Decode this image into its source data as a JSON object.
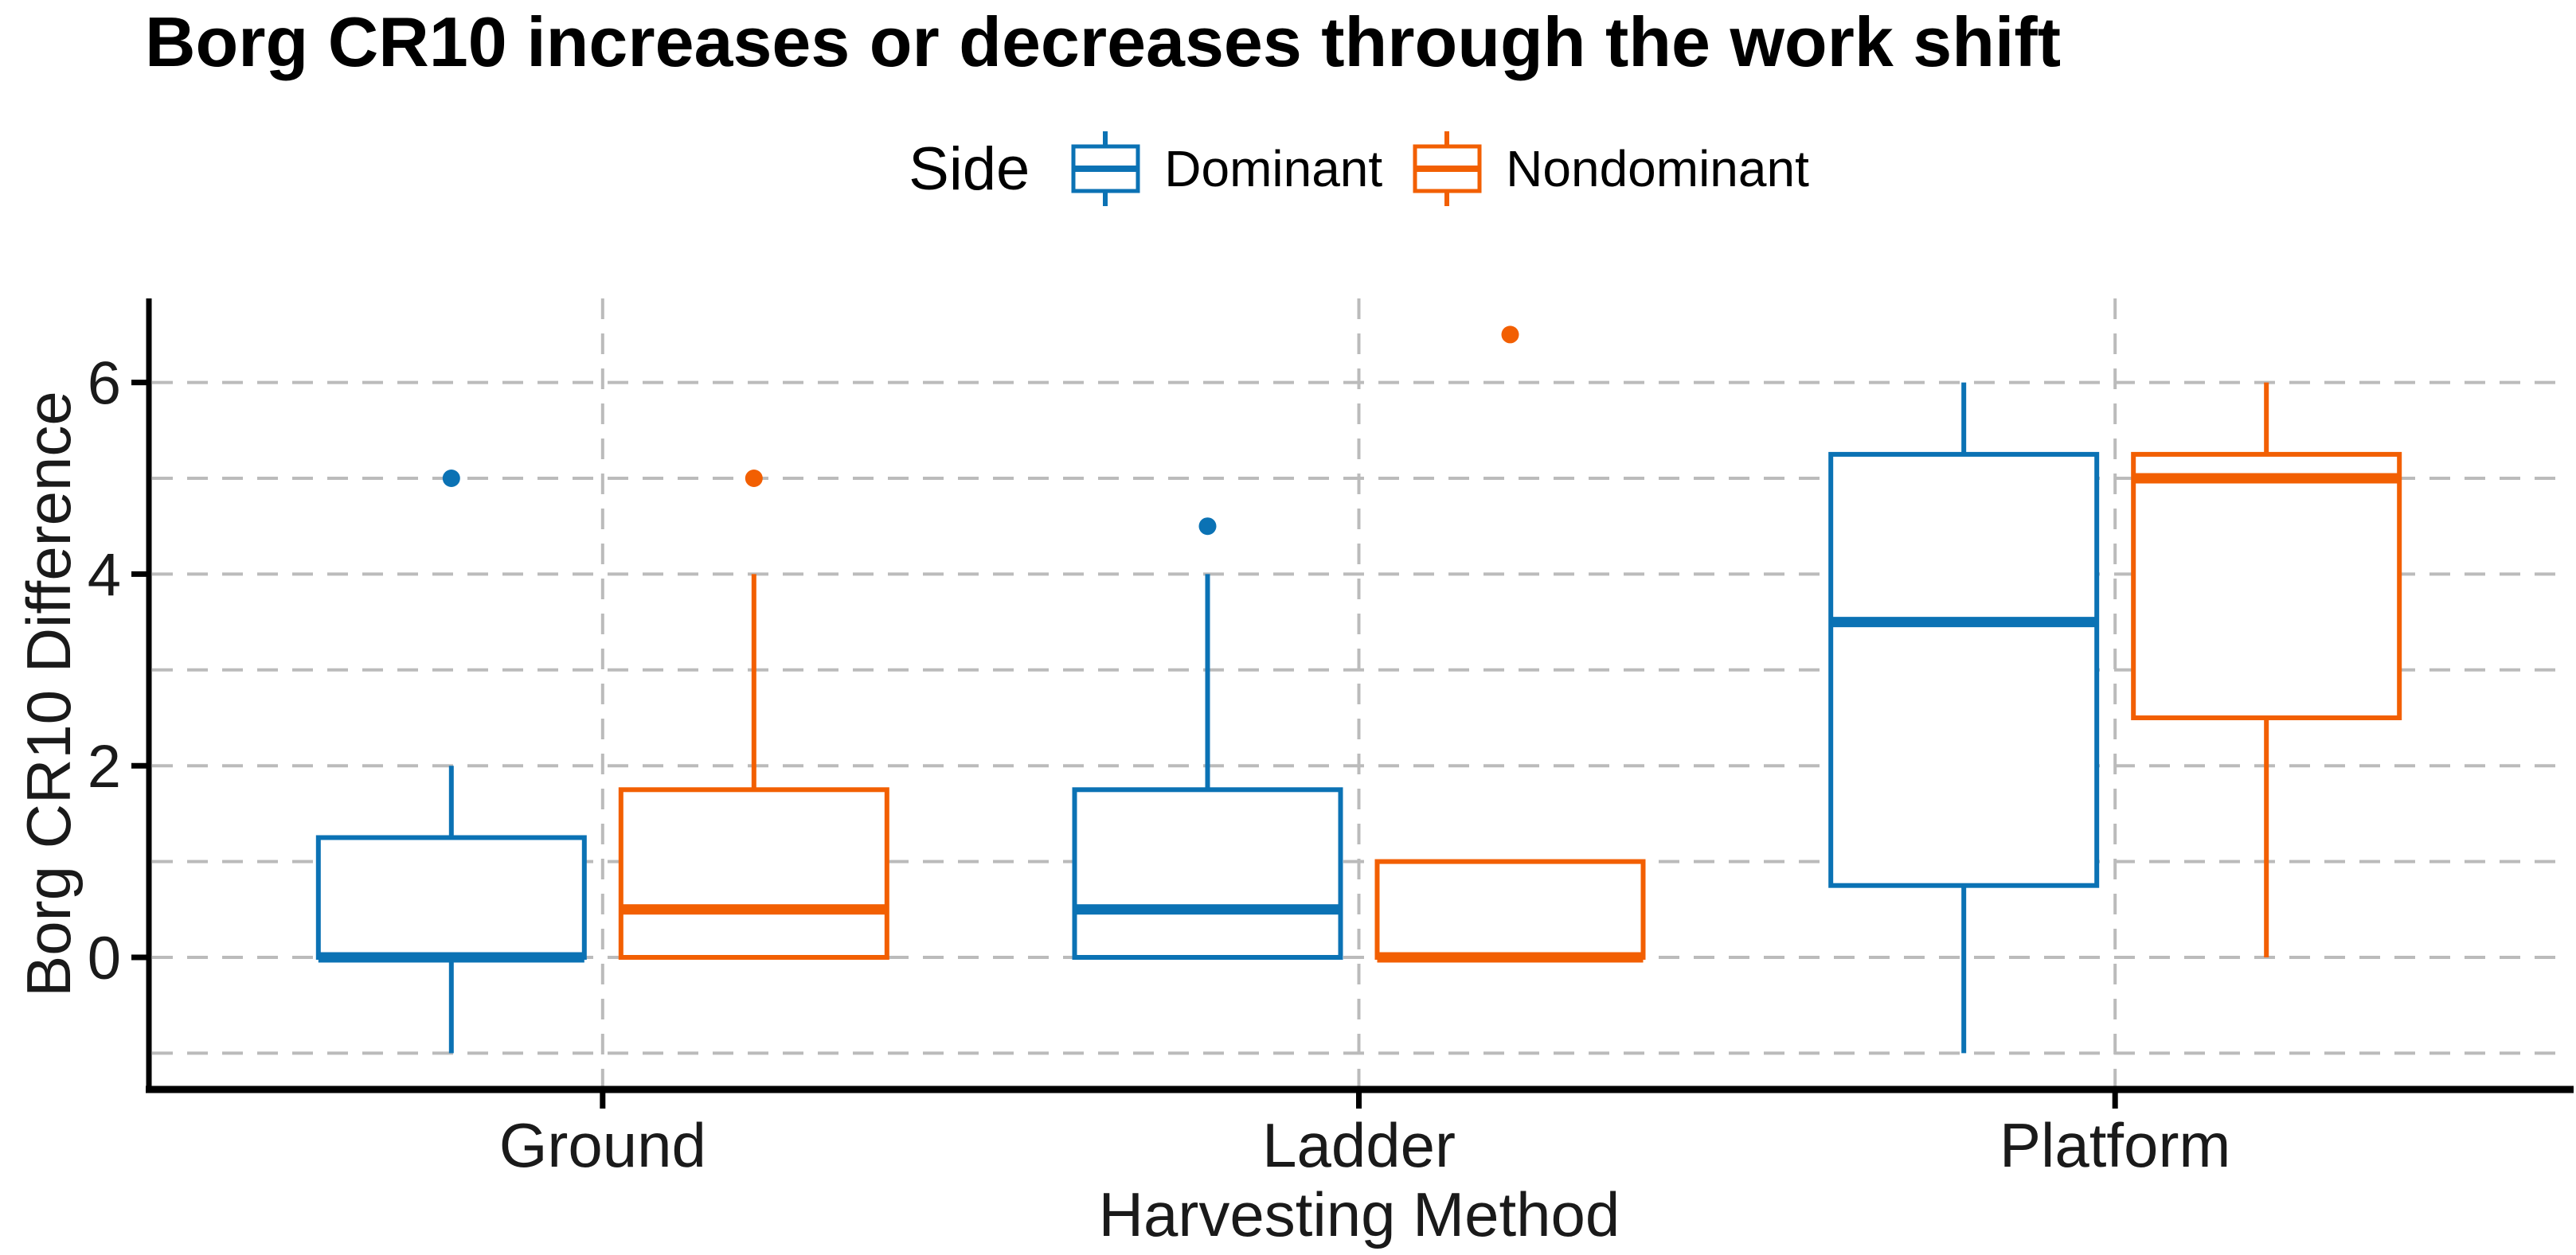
{
  "chart_data": {
    "type": "boxplot",
    "title": "Borg CR10 increases or decreases through the work shift",
    "xlabel": "Harvesting Method",
    "ylabel": "Borg CR10 Difference",
    "categories": [
      "Ground",
      "Ladder",
      "Platform"
    ],
    "legend": {
      "title": "Side",
      "position": "top-center"
    },
    "colors": {
      "dominant": "#0B72B4",
      "nondominant": "#F25F02",
      "grid": "#BBBBBB",
      "axis": "#000000",
      "tick_text": "#1A1A1A"
    },
    "y_axis": {
      "label": "Borg CR10 Difference",
      "tick_labels": [
        0,
        2,
        4,
        6
      ],
      "gridlines": [
        -1,
        0,
        1,
        2,
        3,
        4,
        5,
        6
      ],
      "lim": [
        -1.375,
        6.875
      ],
      "grid_style": "dashed"
    },
    "x_axis": {
      "label": "Harvesting Method",
      "tick_labels": [
        "Ground",
        "Ladder",
        "Platform"
      ]
    },
    "series": [
      {
        "name": "Dominant",
        "color_key": "dominant",
        "stats": [
          {
            "category": "Ground",
            "whisker_low": -1,
            "q1": 0,
            "median": 0,
            "q3": 1.25,
            "whisker_high": 2,
            "outliers": [
              5
            ]
          },
          {
            "category": "Ladder",
            "whisker_low": 0,
            "q1": 0,
            "median": 0.5,
            "q3": 1.75,
            "whisker_high": 4,
            "outliers": [
              4.5
            ]
          },
          {
            "category": "Platform",
            "whisker_low": -1,
            "q1": 0.75,
            "median": 3.5,
            "q3": 5.25,
            "whisker_high": 6,
            "outliers": []
          }
        ]
      },
      {
        "name": "Nondominant",
        "color_key": "nondominant",
        "stats": [
          {
            "category": "Ground",
            "whisker_low": 0,
            "q1": 0,
            "median": 0.5,
            "q3": 1.75,
            "whisker_high": 4,
            "outliers": [
              5
            ]
          },
          {
            "category": "Ladder",
            "whisker_low": 0,
            "q1": 0,
            "median": 0,
            "q3": 1,
            "whisker_high": 1,
            "outliers": [
              6.5
            ]
          },
          {
            "category": "Platform",
            "whisker_low": 0,
            "q1": 2.5,
            "median": 5,
            "q3": 5.25,
            "whisker_high": 6,
            "outliers": []
          }
        ]
      }
    ]
  }
}
